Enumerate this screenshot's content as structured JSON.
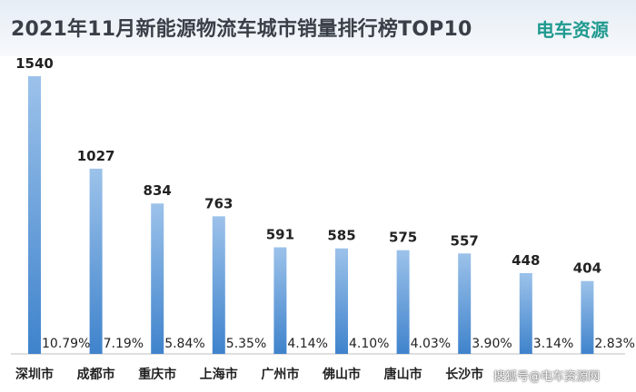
{
  "title": "2021年11月新能源物流车城市销量排行榜TOP10",
  "logo": "电车资源",
  "watermark": "搜狐号@电车资源网",
  "colors": {
    "bar_top": "#9cc2ea",
    "bar_bottom": "#3f83cc",
    "axis": "#bfbfbf",
    "text": "#222222"
  },
  "chart_data": {
    "type": "bar",
    "title": "2021年11月新能源物流车城市销量排行榜TOP10",
    "categories": [
      "深圳市",
      "成都市",
      "重庆市",
      "上海市",
      "广州市",
      "佛山市",
      "唐山市",
      "长沙市",
      "",
      ""
    ],
    "values": [
      1540,
      1027,
      834,
      763,
      591,
      585,
      575,
      557,
      448,
      404
    ],
    "value_labels": [
      "1540",
      "1027",
      "834",
      "763",
      "591",
      "585",
      "575",
      "557",
      "448",
      "404"
    ],
    "share_labels": [
      "10.79%",
      "7.19%",
      "5.84%",
      "5.35%",
      "4.14%",
      "4.10%",
      "4.03%",
      "3.90%",
      "3.14%",
      "2.83%"
    ],
    "ylim": [
      0,
      1600
    ],
    "xlabel": "",
    "ylabel": "",
    "grid": false,
    "legend": "none"
  }
}
